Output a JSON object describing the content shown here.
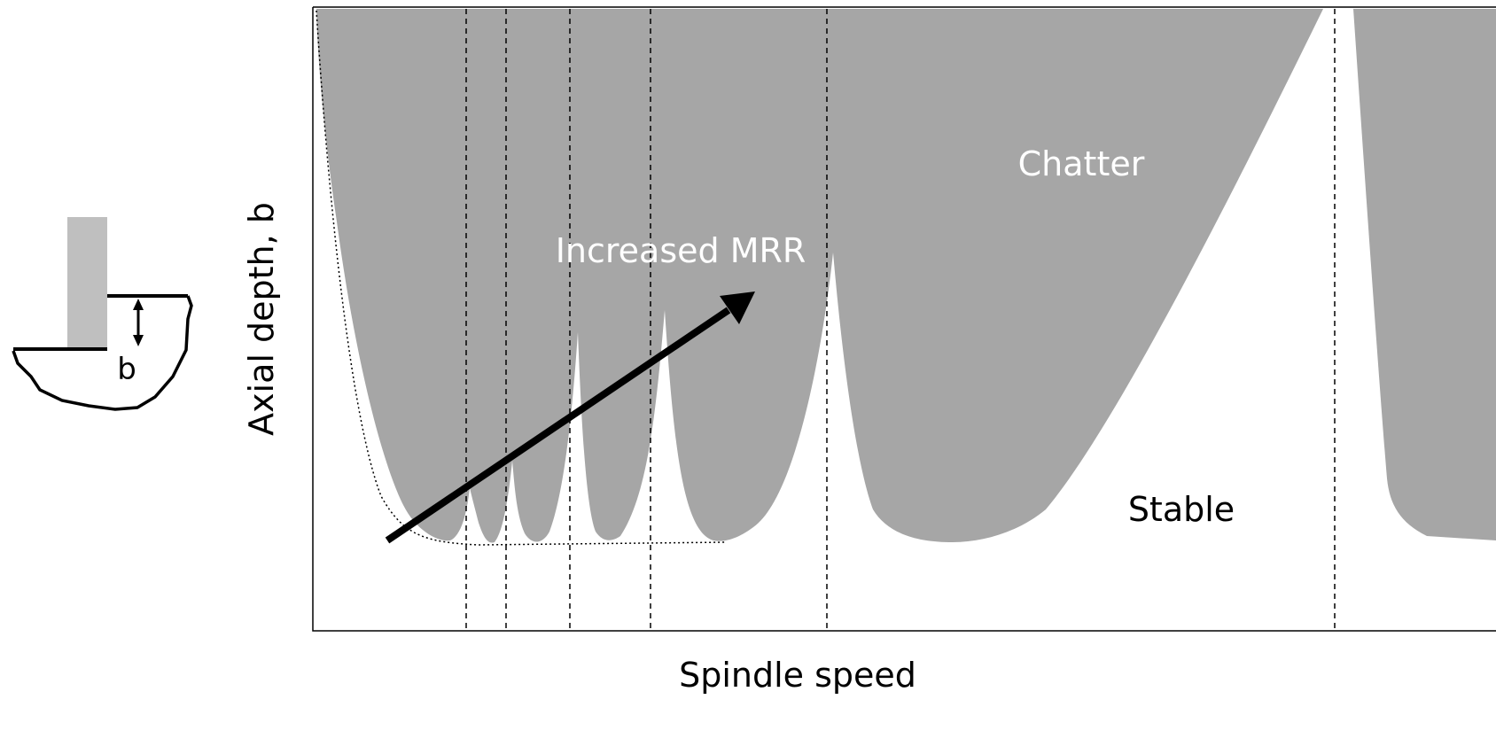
{
  "diagram": {
    "labels": {
      "chatter": "Chatter",
      "stable": "Stable",
      "arrow": "Increased MRR"
    },
    "axes": {
      "y_label": "Axial depth, b",
      "x_label": "Spindle speed"
    },
    "tool_sketch": {
      "depth_label": "b"
    }
  }
}
